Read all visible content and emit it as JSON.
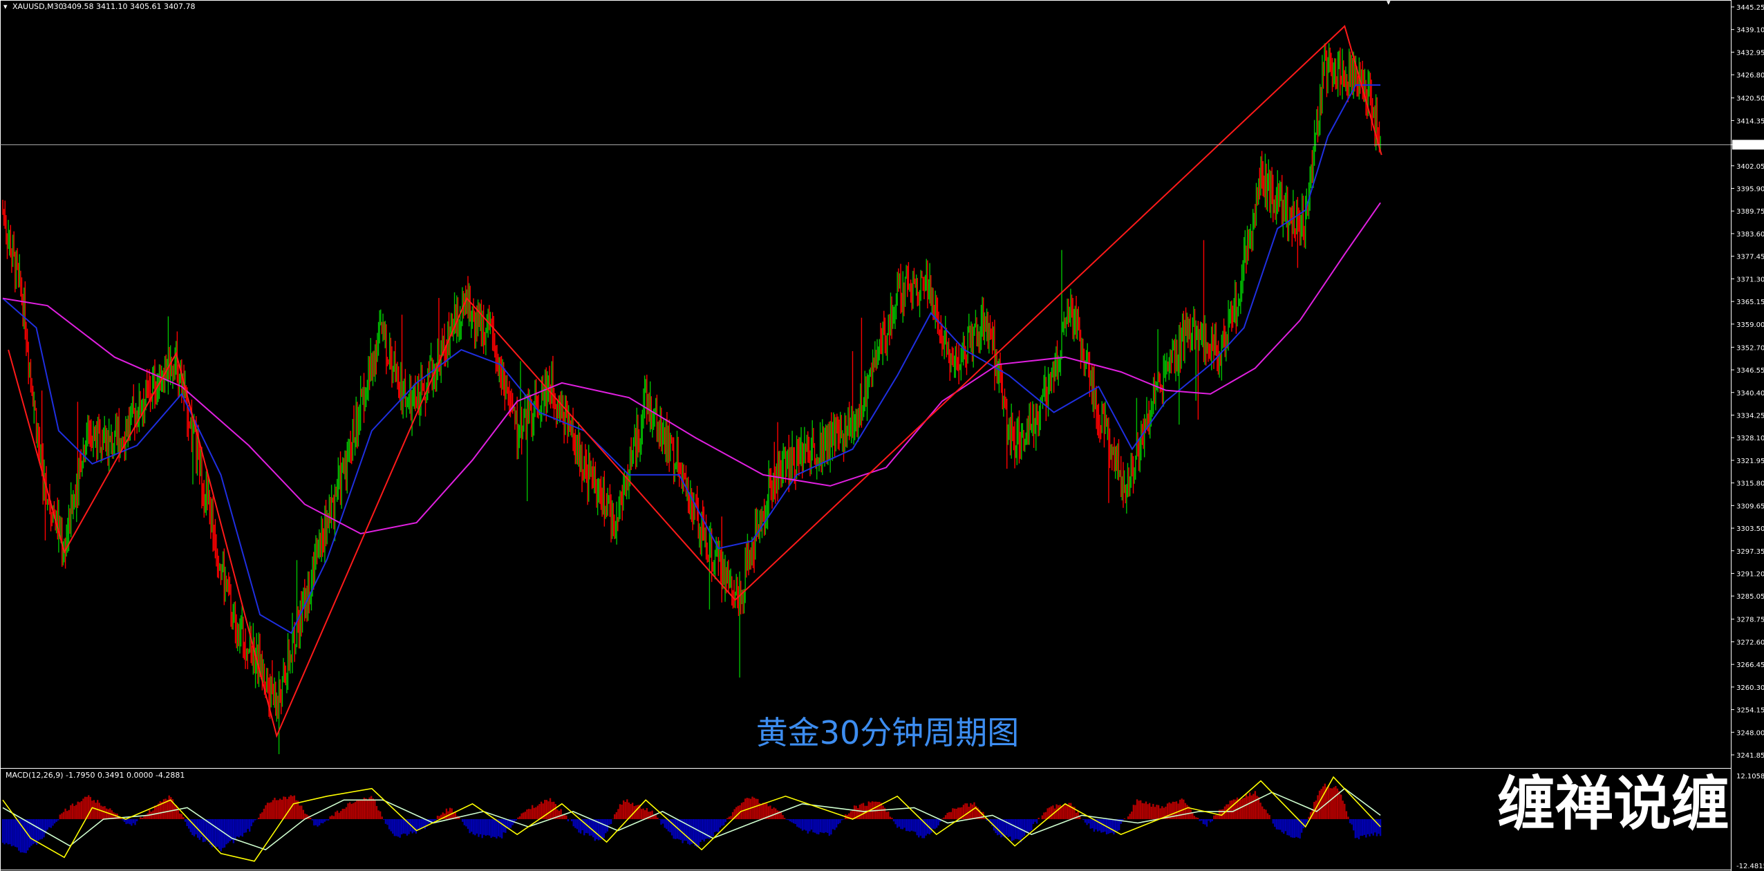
{
  "header": {
    "symbol_label": "XAUUSD,M30",
    "ohlc": "3409.58 3411.10 3405.61 3407.78"
  },
  "caption": "黄金30分钟周期图",
  "watermark": "缠禅说缠",
  "colors": {
    "background": "#000000",
    "up_candle": "#00c000",
    "down_candle": "#ff0000",
    "fast_ma": "#1f2fe0",
    "slow_ma": "#e020e0",
    "zigzag": "#ff1a1a",
    "macd_pos": "#b00000",
    "macd_neg": "#0000b0",
    "macd_line": "#ffff00",
    "signal_line": "#d0ffd0",
    "caption": "#3d8df0"
  },
  "chart_data": [
    {
      "type": "line",
      "title": "",
      "symbol": "XAUUSD",
      "timeframe": "M30",
      "ylim": [
        3241.85,
        3445.25
      ],
      "y_ticks": [
        "3445.25",
        "3439.10",
        "3432.95",
        "3426.80",
        "3420.50",
        "3414.35",
        "3407.78",
        "3402.05",
        "3395.90",
        "3389.75",
        "3383.60",
        "3377.45",
        "3371.30",
        "3365.15",
        "3359.00",
        "3352.70",
        "3346.55",
        "3340.40",
        "3334.25",
        "3328.10",
        "3321.95",
        "3315.80",
        "3309.65",
        "3303.50",
        "3297.35",
        "3291.20",
        "3285.05",
        "3278.75",
        "3272.60",
        "3266.45",
        "3260.30",
        "3254.15",
        "3248.00",
        "3241.85"
      ],
      "current_price": 3407.78,
      "price_path": [
        {
          "x": 0,
          "y": 3390
        },
        {
          "x": 18,
          "y": 3365
        },
        {
          "x": 35,
          "y": 3318
        },
        {
          "x": 55,
          "y": 3298
        },
        {
          "x": 75,
          "y": 3330
        },
        {
          "x": 100,
          "y": 3326
        },
        {
          "x": 125,
          "y": 3338
        },
        {
          "x": 155,
          "y": 3350
        },
        {
          "x": 175,
          "y": 3322
        },
        {
          "x": 205,
          "y": 3280
        },
        {
          "x": 232,
          "y": 3265
        },
        {
          "x": 246,
          "y": 3255
        },
        {
          "x": 275,
          "y": 3290
        },
        {
          "x": 310,
          "y": 3325
        },
        {
          "x": 338,
          "y": 3357
        },
        {
          "x": 365,
          "y": 3336
        },
        {
          "x": 395,
          "y": 3352
        },
        {
          "x": 415,
          "y": 3364
        },
        {
          "x": 438,
          "y": 3355
        },
        {
          "x": 460,
          "y": 3330
        },
        {
          "x": 490,
          "y": 3343
        },
        {
          "x": 520,
          "y": 3320
        },
        {
          "x": 548,
          "y": 3305
        },
        {
          "x": 575,
          "y": 3338
        },
        {
          "x": 605,
          "y": 3320
        },
        {
          "x": 630,
          "y": 3298
        },
        {
          "x": 658,
          "y": 3285
        },
        {
          "x": 690,
          "y": 3318
        },
        {
          "x": 720,
          "y": 3325
        },
        {
          "x": 760,
          "y": 3330
        },
        {
          "x": 800,
          "y": 3367
        },
        {
          "x": 825,
          "y": 3371
        },
        {
          "x": 850,
          "y": 3348
        },
        {
          "x": 880,
          "y": 3360
        },
        {
          "x": 905,
          "y": 3325
        },
        {
          "x": 935,
          "y": 3340
        },
        {
          "x": 955,
          "y": 3365
        },
        {
          "x": 975,
          "y": 3340
        },
        {
          "x": 1005,
          "y": 3315
        },
        {
          "x": 1030,
          "y": 3340
        },
        {
          "x": 1060,
          "y": 3357
        },
        {
          "x": 1090,
          "y": 3352
        },
        {
          "x": 1105,
          "y": 3366
        },
        {
          "x": 1125,
          "y": 3400
        },
        {
          "x": 1145,
          "y": 3390
        },
        {
          "x": 1165,
          "y": 3386
        },
        {
          "x": 1182,
          "y": 3430
        },
        {
          "x": 1200,
          "y": 3428
        },
        {
          "x": 1220,
          "y": 3424
        },
        {
          "x": 1232,
          "y": 3407.78
        }
      ],
      "zigzag": [
        {
          "x": 5,
          "y": 3352
        },
        {
          "x": 55,
          "y": 3297
        },
        {
          "x": 155,
          "y": 3351
        },
        {
          "x": 245,
          "y": 3247
        },
        {
          "x": 415,
          "y": 3366
        },
        {
          "x": 655,
          "y": 3284
        },
        {
          "x": 1200,
          "y": 3440
        },
        {
          "x": 1233,
          "y": 3405
        }
      ],
      "series": [
        {
          "type": "line",
          "values": [
            {
              "x": 0,
              "y": 3366
            },
            {
              "x": 30,
              "y": 3358
            },
            {
              "x": 50,
              "y": 3330
            },
            {
              "x": 80,
              "y": 3321
            },
            {
              "x": 120,
              "y": 3326
            },
            {
              "x": 160,
              "y": 3340
            },
            {
              "x": 195,
              "y": 3318
            },
            {
              "x": 230,
              "y": 3280
            },
            {
              "x": 258,
              "y": 3275
            },
            {
              "x": 290,
              "y": 3295
            },
            {
              "x": 330,
              "y": 3330
            },
            {
              "x": 370,
              "y": 3343
            },
            {
              "x": 410,
              "y": 3352
            },
            {
              "x": 445,
              "y": 3348
            },
            {
              "x": 480,
              "y": 3335
            },
            {
              "x": 520,
              "y": 3330
            },
            {
              "x": 560,
              "y": 3318
            },
            {
              "x": 605,
              "y": 3318
            },
            {
              "x": 640,
              "y": 3298
            },
            {
              "x": 670,
              "y": 3300
            },
            {
              "x": 710,
              "y": 3318
            },
            {
              "x": 760,
              "y": 3325
            },
            {
              "x": 800,
              "y": 3345
            },
            {
              "x": 830,
              "y": 3362
            },
            {
              "x": 860,
              "y": 3352
            },
            {
              "x": 900,
              "y": 3345
            },
            {
              "x": 940,
              "y": 3335
            },
            {
              "x": 980,
              "y": 3342
            },
            {
              "x": 1010,
              "y": 3325
            },
            {
              "x": 1040,
              "y": 3338
            },
            {
              "x": 1080,
              "y": 3348
            },
            {
              "x": 1110,
              "y": 3358
            },
            {
              "x": 1140,
              "y": 3385
            },
            {
              "x": 1165,
              "y": 3390
            },
            {
              "x": 1185,
              "y": 3410
            },
            {
              "x": 1210,
              "y": 3424
            },
            {
              "x": 1232,
              "y": 3424
            }
          ]
        },
        {
          "type": "line",
          "values": [
            {
              "x": 0,
              "y": 3366
            },
            {
              "x": 40,
              "y": 3364
            },
            {
              "x": 100,
              "y": 3350
            },
            {
              "x": 160,
              "y": 3342
            },
            {
              "x": 220,
              "y": 3326
            },
            {
              "x": 270,
              "y": 3310
            },
            {
              "x": 320,
              "y": 3302
            },
            {
              "x": 370,
              "y": 3305
            },
            {
              "x": 420,
              "y": 3322
            },
            {
              "x": 460,
              "y": 3338
            },
            {
              "x": 500,
              "y": 3343
            },
            {
              "x": 560,
              "y": 3339
            },
            {
              "x": 620,
              "y": 3328
            },
            {
              "x": 680,
              "y": 3318
            },
            {
              "x": 740,
              "y": 3315
            },
            {
              "x": 790,
              "y": 3320
            },
            {
              "x": 840,
              "y": 3338
            },
            {
              "x": 890,
              "y": 3348
            },
            {
              "x": 950,
              "y": 3350
            },
            {
              "x": 1000,
              "y": 3346
            },
            {
              "x": 1040,
              "y": 3341
            },
            {
              "x": 1080,
              "y": 3340
            },
            {
              "x": 1120,
              "y": 3347
            },
            {
              "x": 1160,
              "y": 3360
            },
            {
              "x": 1200,
              "y": 3378
            },
            {
              "x": 1232,
              "y": 3392
            }
          ]
        }
      ]
    },
    {
      "type": "bar",
      "title": "MACD(12,26,9) -1.7950 0.3491 0.0000 -4.2881",
      "ylim": [
        -12.4815,
        12.1058
      ],
      "y_ticks": [
        "12.1058",
        "-12.4815"
      ],
      "histogram": [
        {
          "x": 5,
          "y": -6
        },
        {
          "x": 20,
          "y": -9
        },
        {
          "x": 35,
          "y": -5
        },
        {
          "x": 55,
          "y": 2
        },
        {
          "x": 75,
          "y": 6
        },
        {
          "x": 95,
          "y": 3
        },
        {
          "x": 115,
          "y": -2
        },
        {
          "x": 135,
          "y": 3
        },
        {
          "x": 150,
          "y": 6
        },
        {
          "x": 170,
          "y": -4
        },
        {
          "x": 195,
          "y": -8
        },
        {
          "x": 220,
          "y": -3
        },
        {
          "x": 240,
          "y": 5
        },
        {
          "x": 260,
          "y": 6
        },
        {
          "x": 280,
          "y": -2
        },
        {
          "x": 310,
          "y": 4
        },
        {
          "x": 330,
          "y": 6
        },
        {
          "x": 350,
          "y": -5
        },
        {
          "x": 375,
          "y": -3
        },
        {
          "x": 400,
          "y": 3
        },
        {
          "x": 420,
          "y": -4
        },
        {
          "x": 445,
          "y": -5
        },
        {
          "x": 470,
          "y": 3
        },
        {
          "x": 490,
          "y": 5
        },
        {
          "x": 515,
          "y": -3
        },
        {
          "x": 535,
          "y": -6
        },
        {
          "x": 555,
          "y": 5
        },
        {
          "x": 580,
          "y": 2
        },
        {
          "x": 600,
          "y": -5
        },
        {
          "x": 620,
          "y": -7
        },
        {
          "x": 640,
          "y": -3
        },
        {
          "x": 665,
          "y": 6
        },
        {
          "x": 690,
          "y": 3
        },
        {
          "x": 715,
          "y": -3
        },
        {
          "x": 740,
          "y": -4
        },
        {
          "x": 760,
          "y": 3
        },
        {
          "x": 785,
          "y": 5
        },
        {
          "x": 800,
          "y": -2
        },
        {
          "x": 825,
          "y": -5
        },
        {
          "x": 850,
          "y": 3
        },
        {
          "x": 870,
          "y": 4
        },
        {
          "x": 890,
          "y": -4
        },
        {
          "x": 910,
          "y": -6
        },
        {
          "x": 935,
          "y": 3
        },
        {
          "x": 955,
          "y": 4
        },
        {
          "x": 975,
          "y": -3
        },
        {
          "x": 995,
          "y": -4
        },
        {
          "x": 1015,
          "y": 5
        },
        {
          "x": 1035,
          "y": 3
        },
        {
          "x": 1055,
          "y": 5
        },
        {
          "x": 1075,
          "y": -2
        },
        {
          "x": 1095,
          "y": 4
        },
        {
          "x": 1120,
          "y": 7
        },
        {
          "x": 1140,
          "y": -3
        },
        {
          "x": 1160,
          "y": -5
        },
        {
          "x": 1180,
          "y": 9
        },
        {
          "x": 1195,
          "y": 8
        },
        {
          "x": 1210,
          "y": -5
        },
        {
          "x": 1228,
          "y": -4
        }
      ],
      "macd_line": [
        {
          "x": 0,
          "y": 5
        },
        {
          "x": 25,
          "y": -5
        },
        {
          "x": 55,
          "y": -10
        },
        {
          "x": 80,
          "y": 3
        },
        {
          "x": 110,
          "y": 0
        },
        {
          "x": 150,
          "y": 5
        },
        {
          "x": 195,
          "y": -9
        },
        {
          "x": 225,
          "y": -11
        },
        {
          "x": 260,
          "y": 4
        },
        {
          "x": 290,
          "y": 6
        },
        {
          "x": 330,
          "y": 8
        },
        {
          "x": 370,
          "y": -3
        },
        {
          "x": 420,
          "y": 4
        },
        {
          "x": 460,
          "y": -4
        },
        {
          "x": 500,
          "y": 4
        },
        {
          "x": 540,
          "y": -6
        },
        {
          "x": 575,
          "y": 5
        },
        {
          "x": 625,
          "y": -8
        },
        {
          "x": 660,
          "y": 2
        },
        {
          "x": 700,
          "y": 6
        },
        {
          "x": 760,
          "y": 0
        },
        {
          "x": 800,
          "y": 6
        },
        {
          "x": 835,
          "y": -4
        },
        {
          "x": 870,
          "y": 3
        },
        {
          "x": 905,
          "y": -7
        },
        {
          "x": 950,
          "y": 4
        },
        {
          "x": 1000,
          "y": -4
        },
        {
          "x": 1060,
          "y": 3
        },
        {
          "x": 1090,
          "y": 1
        },
        {
          "x": 1125,
          "y": 10
        },
        {
          "x": 1165,
          "y": -2
        },
        {
          "x": 1190,
          "y": 11
        },
        {
          "x": 1232,
          "y": -2
        }
      ],
      "signal_line": [
        {
          "x": 0,
          "y": 3
        },
        {
          "x": 30,
          "y": -2
        },
        {
          "x": 60,
          "y": -7
        },
        {
          "x": 90,
          "y": 0
        },
        {
          "x": 130,
          "y": 1
        },
        {
          "x": 165,
          "y": 3
        },
        {
          "x": 205,
          "y": -5
        },
        {
          "x": 235,
          "y": -8
        },
        {
          "x": 270,
          "y": 0
        },
        {
          "x": 305,
          "y": 5
        },
        {
          "x": 340,
          "y": 5
        },
        {
          "x": 385,
          "y": -1
        },
        {
          "x": 430,
          "y": 2
        },
        {
          "x": 470,
          "y": -2
        },
        {
          "x": 510,
          "y": 2
        },
        {
          "x": 550,
          "y": -3
        },
        {
          "x": 590,
          "y": 2
        },
        {
          "x": 635,
          "y": -5
        },
        {
          "x": 670,
          "y": -1
        },
        {
          "x": 715,
          "y": 4
        },
        {
          "x": 770,
          "y": 2
        },
        {
          "x": 815,
          "y": 3
        },
        {
          "x": 845,
          "y": -1
        },
        {
          "x": 885,
          "y": 1
        },
        {
          "x": 920,
          "y": -4
        },
        {
          "x": 965,
          "y": 1
        },
        {
          "x": 1015,
          "y": -1
        },
        {
          "x": 1070,
          "y": 2
        },
        {
          "x": 1100,
          "y": 2
        },
        {
          "x": 1135,
          "y": 7
        },
        {
          "x": 1175,
          "y": 2
        },
        {
          "x": 1200,
          "y": 8
        },
        {
          "x": 1232,
          "y": 1
        }
      ]
    }
  ]
}
